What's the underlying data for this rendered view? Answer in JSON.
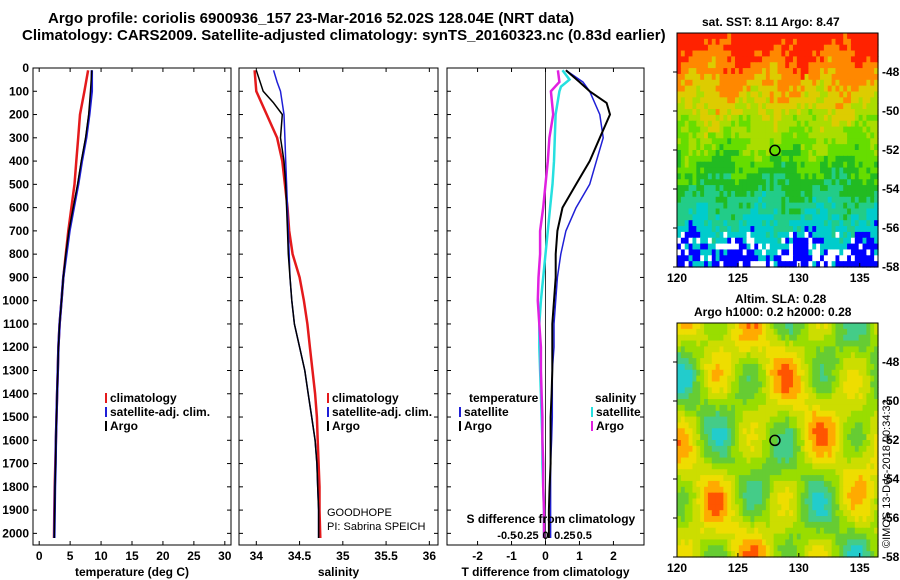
{
  "title": {
    "line1": "Argo profile: coriolis 6900936_157 23-Mar-2016 52.02S 128.04E (NRT data)",
    "line2": "Climatology: CARS2009. Satellite-adjusted climatology: synTS_20160323.nc (0.83d earlier)"
  },
  "sst_title": "sat. SST: 8.11 Argo: 8.47",
  "sla_title1": "Altim. SLA: 0.28",
  "sla_title2": "Argo h1000: 0.2 h2000: 0.28",
  "stamp": "©IMOS 13-Dec-2018 00:34:32",
  "credit1": "GOODHOPE",
  "credit2": "PI: Sabrina SPEICH",
  "colors": {
    "climatology": "#e41a1c",
    "satellite": "#1f1fd6",
    "argo": "#000000",
    "t_sat": "#1f1fd6",
    "s_sat": "#26e0e0",
    "s_argo": "#e020e0"
  },
  "legend": {
    "clim": "climatology",
    "sat": "satellite-adj. clim.",
    "argo": "Argo",
    "temperature": "temperature",
    "salinity": "salinity",
    "satellite": "satellite"
  },
  "chart_data": [
    {
      "type": "line",
      "xlabel": "temperature (deg C)",
      "ylabel": "",
      "xlim": [
        -1,
        31
      ],
      "ylim": [
        2050,
        0
      ],
      "xticks": [
        "0",
        "5",
        "10",
        "15",
        "20",
        "25",
        "30"
      ],
      "yticks": [
        "0",
        "100",
        "200",
        "300",
        "400",
        "500",
        "600",
        "700",
        "800",
        "900",
        "1000",
        "1100",
        "1200",
        "1300",
        "1400",
        "1500",
        "1600",
        "1700",
        "1800",
        "1900",
        "2000"
      ],
      "series": [
        {
          "name": "climatology",
          "depth": [
            10,
            100,
            200,
            300,
            400,
            500,
            600,
            700,
            800,
            900,
            1000,
            1100,
            1200,
            1300,
            1400,
            1500,
            1600,
            1700,
            1800,
            1900,
            2020
          ],
          "values": [
            7.9,
            7.3,
            6.6,
            6.3,
            6.0,
            5.7,
            5.2,
            4.7,
            4.3,
            3.9,
            3.6,
            3.3,
            3.1,
            3.0,
            2.9,
            2.8,
            2.7,
            2.6,
            2.5,
            2.45,
            2.4
          ]
        },
        {
          "name": "satellite-adj. clim.",
          "depth": [
            10,
            100,
            200,
            300,
            400,
            500,
            600,
            700,
            800,
            900,
            1000,
            1100,
            1200,
            1300,
            1400,
            1500,
            1600,
            1700,
            1800,
            1900,
            2020
          ],
          "values": [
            8.5,
            8.5,
            8.1,
            7.6,
            6.9,
            6.3,
            5.6,
            4.9,
            4.4,
            3.9,
            3.6,
            3.3,
            3.1,
            3.0,
            2.9,
            2.8,
            2.7,
            2.65,
            2.55,
            2.5,
            2.45
          ]
        },
        {
          "name": "Argo",
          "depth": [
            10,
            100,
            200,
            300,
            400,
            500,
            600,
            700,
            800,
            900,
            1000,
            1100,
            1200,
            1300,
            1400,
            1500,
            1600,
            1700,
            1800,
            1900,
            2020
          ],
          "values": [
            8.5,
            8.3,
            8.0,
            7.5,
            6.8,
            6.2,
            5.5,
            4.8,
            4.3,
            3.9,
            3.6,
            3.3,
            3.1,
            3.0,
            2.9,
            2.8,
            2.7,
            2.65,
            2.55,
            2.5,
            2.45
          ]
        }
      ]
    },
    {
      "type": "line",
      "xlabel": "salinity",
      "xlim": [
        33.8,
        36.1
      ],
      "ylim": [
        2050,
        0
      ],
      "xticks": [
        "34",
        "34.5",
        "35",
        "35.5",
        "36"
      ],
      "series": [
        {
          "name": "climatology",
          "depth": [
            10,
            100,
            200,
            300,
            400,
            500,
            600,
            700,
            800,
            900,
            1000,
            1100,
            1200,
            1300,
            1400,
            1500,
            1600,
            1700,
            1800,
            1900,
            2020
          ],
          "values": [
            33.98,
            34.0,
            34.12,
            34.24,
            34.3,
            34.33,
            34.36,
            34.38,
            34.42,
            34.5,
            34.55,
            34.59,
            34.62,
            34.65,
            34.68,
            34.7,
            34.71,
            34.72,
            34.73,
            34.73,
            34.74
          ]
        },
        {
          "name": "satellite-adj. clim.",
          "depth": [
            10,
            60,
            100,
            200,
            300,
            400,
            500,
            600,
            700,
            800,
            900,
            1000,
            1100,
            1200,
            1300,
            1400,
            1500,
            1600,
            1700,
            1800,
            1900,
            2020
          ],
          "values": [
            34.2,
            34.24,
            34.28,
            34.32,
            34.33,
            34.34,
            34.35,
            34.36,
            34.37,
            34.38,
            34.39,
            34.41,
            34.44,
            34.5,
            34.56,
            34.6,
            34.64,
            34.68,
            34.7,
            34.71,
            34.72,
            34.72
          ]
        },
        {
          "name": "Argo",
          "depth": [
            10,
            100,
            150,
            200,
            300,
            400,
            500,
            600,
            700,
            800,
            900,
            1000,
            1100,
            1200,
            1300,
            1400,
            1500,
            1600,
            1700,
            1800,
            1900,
            2020
          ],
          "values": [
            34.0,
            34.08,
            34.2,
            34.3,
            34.28,
            34.32,
            34.34,
            34.35,
            34.36,
            34.37,
            34.39,
            34.41,
            34.44,
            34.5,
            34.56,
            34.6,
            34.64,
            34.68,
            34.7,
            34.71,
            34.72,
            34.72
          ]
        }
      ]
    },
    {
      "type": "line",
      "xlabel": "T difference from climatology",
      "xlabel2": "S difference from climatology",
      "xlim": [
        -2.9,
        2.9
      ],
      "ylim": [
        2050,
        0
      ],
      "xticks": [
        "-2",
        "-1",
        "0",
        "1",
        "2"
      ],
      "xticks2": [
        "-0.5",
        "-0.25",
        "0",
        "0.25",
        "0.5"
      ],
      "series": [
        {
          "name": "T satellite",
          "depth": [
            10,
            60,
            100,
            200,
            300,
            400,
            500,
            600,
            700,
            800,
            900,
            1000,
            1100,
            1200,
            1300,
            1400,
            1500,
            1600,
            1700,
            1800,
            1900,
            2020
          ],
          "values": [
            0.6,
            1.1,
            1.3,
            1.6,
            1.7,
            1.5,
            1.3,
            0.9,
            0.6,
            0.45,
            0.35,
            0.3,
            0.25,
            0.25,
            0.2,
            0.2,
            0.2,
            0.18,
            0.15,
            0.15,
            0.15,
            0.15
          ]
        },
        {
          "name": "T Argo",
          "depth": [
            10,
            60,
            100,
            150,
            200,
            300,
            400,
            500,
            600,
            700,
            800,
            900,
            1000,
            1100,
            1200,
            1300,
            1400,
            1500,
            1600,
            1700,
            1800,
            1900,
            2020
          ],
          "values": [
            0.6,
            1.0,
            1.3,
            1.8,
            1.9,
            1.6,
            1.3,
            0.9,
            0.5,
            0.35,
            0.3,
            0.3,
            0.25,
            0.2,
            0.2,
            0.2,
            0.18,
            0.15,
            0.15,
            0.15,
            0.12,
            0.1,
            0.1
          ]
        },
        {
          "name": "S satellite",
          "depth": [
            10,
            50,
            80,
            100,
            200,
            300,
            400,
            500,
            600,
            700,
            800,
            900,
            1000,
            1100,
            1200,
            1300,
            1400,
            1500,
            1600,
            1700,
            1800,
            1900,
            2020
          ],
          "values": [
            0.22,
            0.31,
            0.2,
            0.18,
            0.13,
            0.12,
            0.11,
            0.09,
            0.06,
            0.03,
            0.0,
            -0.03,
            -0.06,
            -0.08,
            -0.08,
            -0.07,
            -0.06,
            -0.05,
            -0.04,
            -0.04,
            -0.03,
            -0.02,
            -0.02
          ]
        },
        {
          "name": "S Argo",
          "depth": [
            10,
            60,
            100,
            200,
            300,
            400,
            500,
            600,
            700,
            800,
            900,
            1000,
            1100,
            1200,
            1300,
            1400,
            1500,
            1600,
            1700,
            1800,
            1900,
            2020
          ],
          "values": [
            0.16,
            0.18,
            0.07,
            0.1,
            0.05,
            0.03,
            0.0,
            -0.03,
            -0.07,
            -0.07,
            -0.09,
            -0.1,
            -0.08,
            -0.06,
            -0.06,
            -0.05,
            -0.04,
            -0.04,
            -0.03,
            -0.03,
            -0.02,
            -0.02
          ]
        }
      ]
    },
    {
      "type": "heatmap",
      "title": "sat. SST: 8.11 Argo: 8.47",
      "xlim": [
        120,
        136.5
      ],
      "ylim": [
        -58,
        -46
      ],
      "xticks": [
        "120",
        "125",
        "130",
        "135"
      ],
      "yticks": [
        "-48",
        "-50",
        "-52",
        "-54",
        "-56",
        "-58"
      ],
      "marker": {
        "lon": 128.04,
        "lat": -52.02
      }
    },
    {
      "type": "heatmap",
      "title": "Altim. SLA: 0.28",
      "xlim": [
        120,
        136.5
      ],
      "ylim": [
        -58,
        -46
      ],
      "xticks": [
        "120",
        "125",
        "130",
        "135"
      ],
      "yticks": [
        "-48",
        "-50",
        "-52",
        "-54",
        "-56",
        "-58"
      ],
      "marker": {
        "lon": 128.04,
        "lat": -52.02
      }
    }
  ]
}
